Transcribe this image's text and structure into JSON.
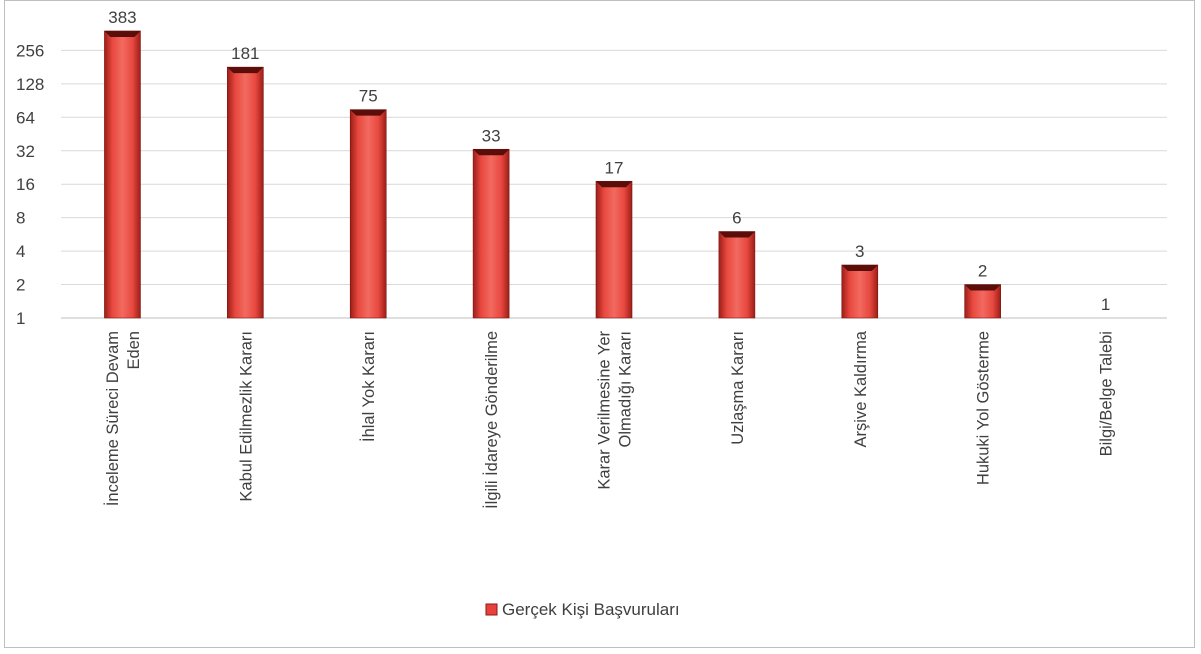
{
  "chart_data": {
    "type": "bar",
    "y_scale": "log2",
    "ylim": [
      1,
      383
    ],
    "y_ticks": [
      "1",
      "2",
      "4",
      "8",
      "16",
      "32",
      "64",
      "128",
      "256"
    ],
    "grid": true,
    "legend_position": "bottom",
    "categories": [
      [
        "İnceleme Süreci Devam",
        "Eden"
      ],
      [
        "Kabul Edilmezlik Kararı"
      ],
      [
        "İhlal Yok Kararı"
      ],
      [
        "İlgili İdareye Gönderilme"
      ],
      [
        "Karar Verilmesine Yer",
        "Olmadığı Kararı"
      ],
      [
        "Uzlaşma Kararı"
      ],
      [
        "Arşive Kaldırma"
      ],
      [
        "Hukuki Yol Gösterme"
      ],
      [
        "Bilgi/Belge Talebi"
      ]
    ],
    "series": [
      {
        "name": "Gerçek Kişi Başvuruları",
        "color": "#e8403a",
        "values": [
          383,
          181,
          75,
          33,
          17,
          6,
          3,
          2,
          1
        ]
      }
    ]
  }
}
